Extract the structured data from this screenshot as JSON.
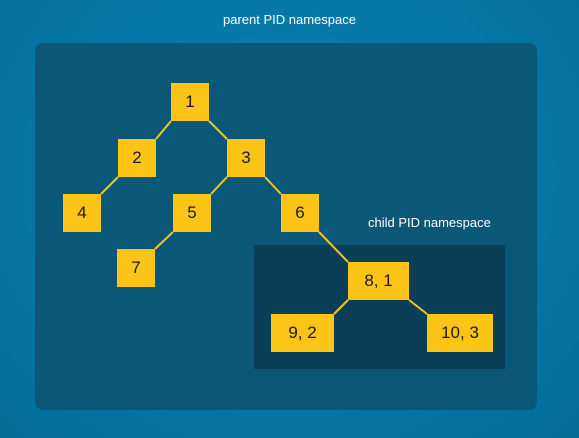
{
  "labels": {
    "parent_namespace": "parent PID namespace",
    "child_namespace": "child PID namespace"
  },
  "colors": {
    "background": "#0577a6",
    "parent_box": "#0b5778",
    "child_box": "#0a3f56",
    "node_fill": "#fcc417",
    "edge": "#fcc417"
  },
  "nodes": [
    {
      "id": "n1",
      "label": "1",
      "namespace": "parent"
    },
    {
      "id": "n2",
      "label": "2",
      "namespace": "parent"
    },
    {
      "id": "n3",
      "label": "3",
      "namespace": "parent"
    },
    {
      "id": "n4",
      "label": "4",
      "namespace": "parent"
    },
    {
      "id": "n5",
      "label": "5",
      "namespace": "parent"
    },
    {
      "id": "n6",
      "label": "6",
      "namespace": "parent"
    },
    {
      "id": "n7",
      "label": "7",
      "namespace": "parent"
    },
    {
      "id": "n8",
      "label": "8, 1",
      "namespace": "child"
    },
    {
      "id": "n9",
      "label": "9, 2",
      "namespace": "child"
    },
    {
      "id": "n10",
      "label": "10, 3",
      "namespace": "child"
    }
  ],
  "edges": [
    [
      "n1",
      "n2"
    ],
    [
      "n1",
      "n3"
    ],
    [
      "n2",
      "n4"
    ],
    [
      "n3",
      "n5"
    ],
    [
      "n3",
      "n6"
    ],
    [
      "n5",
      "n7"
    ],
    [
      "n6",
      "n8"
    ],
    [
      "n8",
      "n9"
    ],
    [
      "n8",
      "n10"
    ]
  ]
}
